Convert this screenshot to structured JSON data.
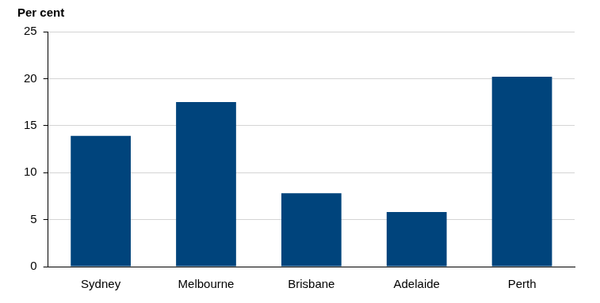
{
  "chart_data": {
    "type": "bar",
    "y_label": "Per cent",
    "categories": [
      "Sydney",
      "Melbourne",
      "Brisbane",
      "Adelaide",
      "Perth"
    ],
    "values": [
      13.9,
      17.5,
      7.8,
      5.8,
      20.2
    ],
    "color": "#00447c",
    "ylim": [
      0,
      25
    ],
    "yticks": [
      0,
      5,
      10,
      15,
      20,
      25
    ],
    "grid": true
  }
}
